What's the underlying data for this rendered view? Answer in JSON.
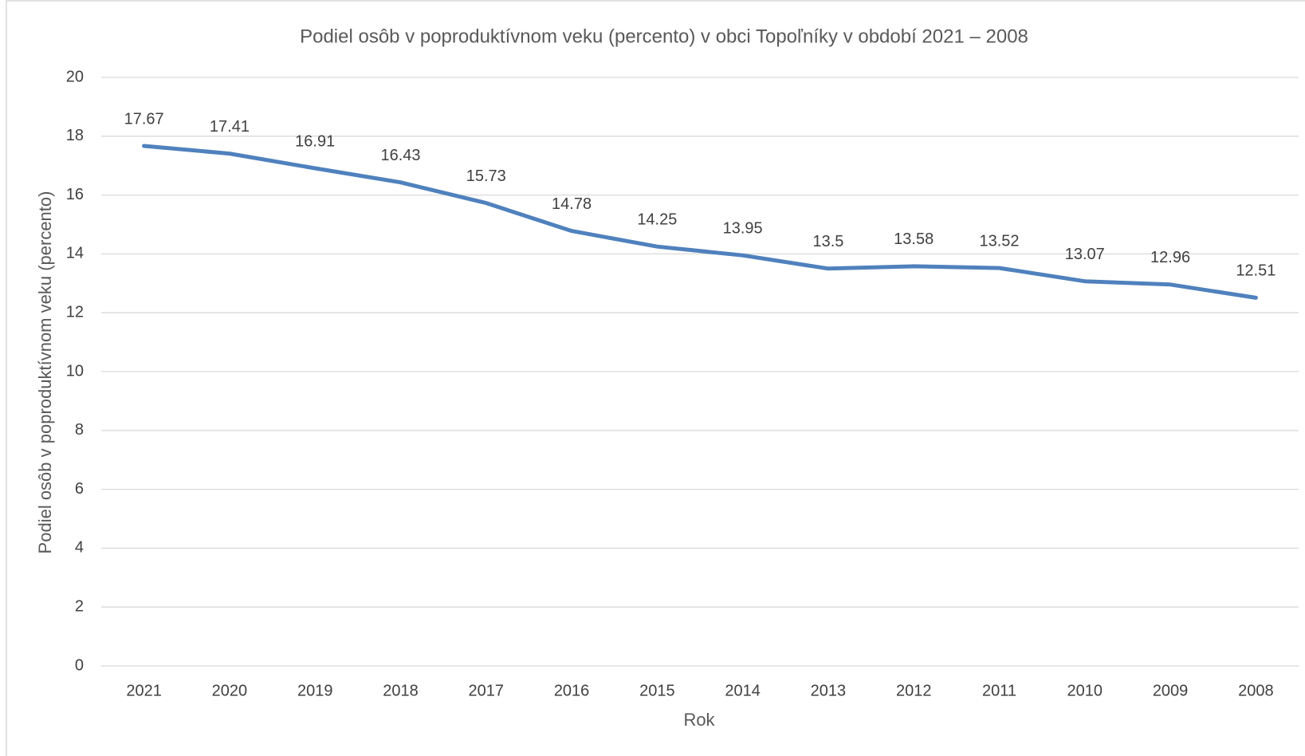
{
  "chart_data": {
    "type": "line",
    "title": "Podiel osôb v poproduktívnom veku (percento) v obci Topoľníky v období 2021 – 2008",
    "x_label": "Rok",
    "y_label": "Podiel osôb v poproduktívnom veku (percento)",
    "categories": [
      "2021",
      "2020",
      "2019",
      "2018",
      "2017",
      "2016",
      "2015",
      "2014",
      "2013",
      "2012",
      "2011",
      "2010",
      "2009",
      "2008"
    ],
    "series": [
      {
        "name": "Podiel osôb v poproduktívnom veku (percento)",
        "color": "#4f81bd",
        "values": [
          17.67,
          17.41,
          16.91,
          16.43,
          15.73,
          14.78,
          14.25,
          13.95,
          13.5,
          13.58,
          13.52,
          13.07,
          12.96,
          12.51
        ]
      }
    ],
    "ylim": [
      0,
      20
    ],
    "yticks": [
      0,
      2,
      4,
      6,
      8,
      10,
      12,
      14,
      16,
      18,
      20
    ],
    "grid": true
  }
}
